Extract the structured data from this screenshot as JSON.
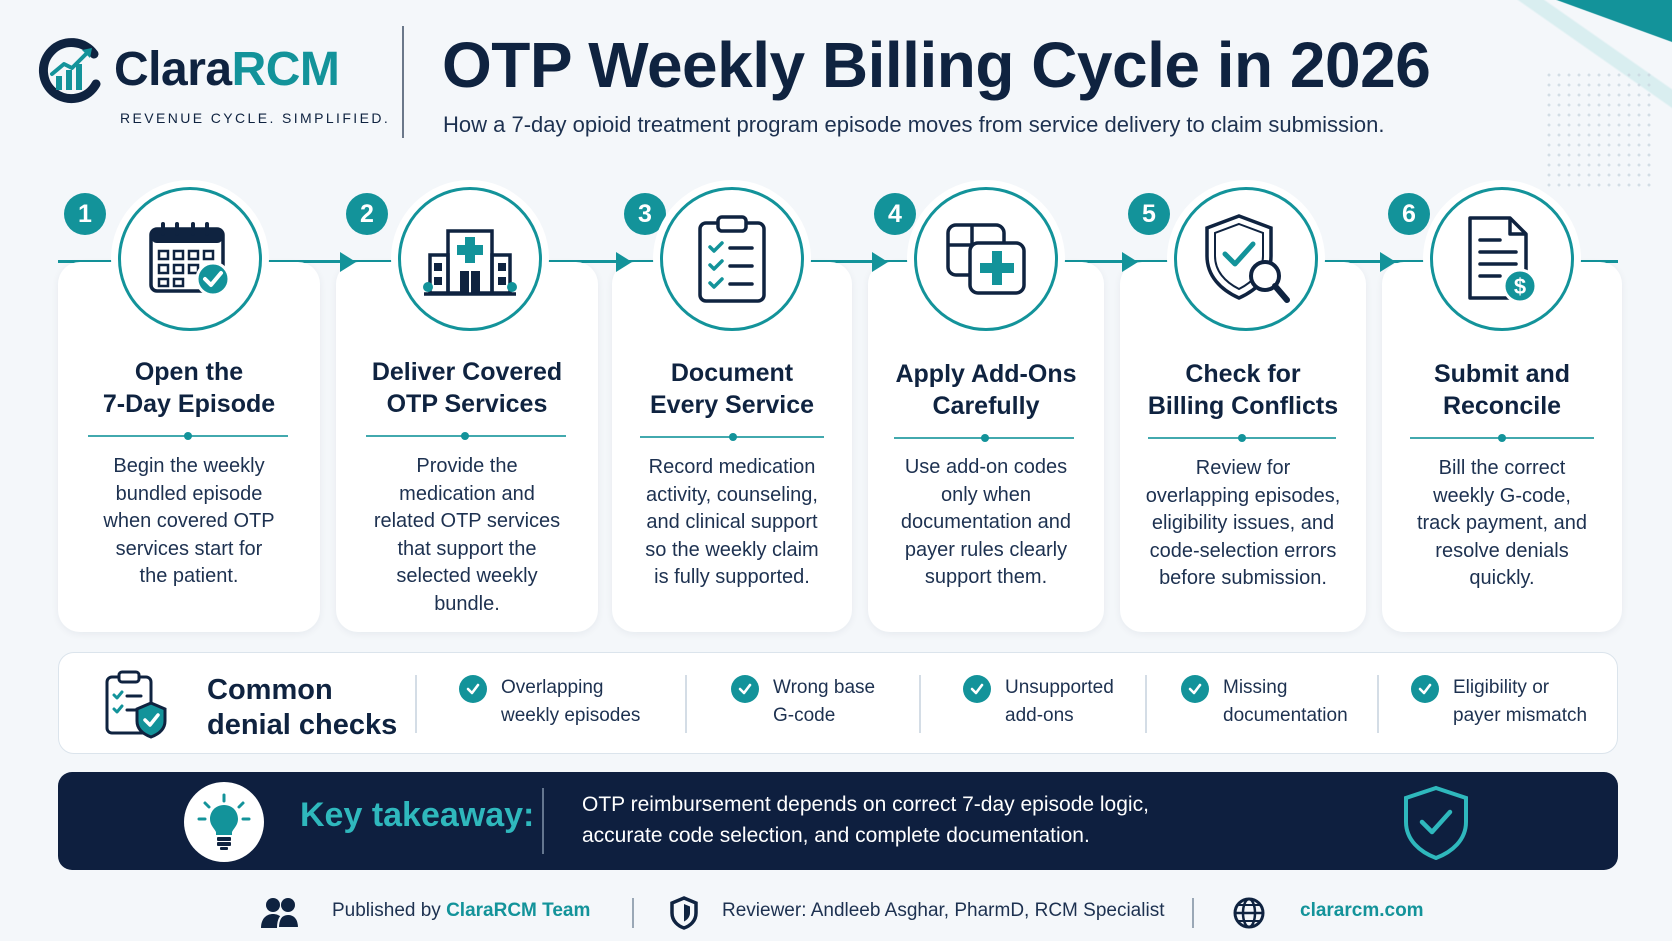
{
  "brand": {
    "name_part1": "Clara",
    "name_part2": "RCM",
    "tagline": "REVENUE CYCLE. SIMPLIFIED."
  },
  "header": {
    "title": "OTP Weekly Billing Cycle in 2026",
    "subtitle": "How a 7-day opioid treatment program episode moves from service delivery to claim submission."
  },
  "steps": [
    {
      "number": "1",
      "icon": "calendar-check-icon",
      "title_line1": "Open the",
      "title_line2": "7-Day Episode",
      "desc": [
        "Begin the weekly",
        "bundled episode",
        "when covered OTP",
        "services start for",
        "the patient."
      ]
    },
    {
      "number": "2",
      "icon": "hospital-icon",
      "title_line1": "Deliver Covered",
      "title_line2": "OTP Services",
      "desc": [
        "Provide the",
        "medication and",
        "related OTP services",
        "that support the",
        "selected weekly",
        "bundle."
      ]
    },
    {
      "number": "3",
      "icon": "clipboard-checklist-icon",
      "title_line1": "Document",
      "title_line2": "Every Service",
      "desc": [
        "Record medication",
        "activity, counseling,",
        "and clinical support",
        "so the weekly claim",
        "is fully supported."
      ]
    },
    {
      "number": "4",
      "icon": "add-on-plus-icon",
      "title_line1": "Apply Add-Ons",
      "title_line2": "Carefully",
      "desc": [
        "Use add-on codes",
        "only when",
        "documentation and",
        "payer rules clearly",
        "support them."
      ]
    },
    {
      "number": "5",
      "icon": "shield-search-icon",
      "title_line1": "Check for",
      "title_line2": "Billing Conflicts",
      "desc": [
        "Review for",
        "overlapping episodes,",
        "eligibility issues, and",
        "code-selection errors",
        "before submission."
      ]
    },
    {
      "number": "6",
      "icon": "invoice-dollar-icon",
      "title_line1": "Submit and",
      "title_line2": "Reconcile",
      "desc": [
        "Bill the correct",
        "weekly G-code,",
        "track payment, and",
        "resolve denials",
        "quickly."
      ]
    }
  ],
  "denial_checks": {
    "title_line1": "Common",
    "title_line2": "denial checks",
    "items": [
      {
        "line1": "Overlapping",
        "line2": "weekly episodes"
      },
      {
        "line1": "Wrong base",
        "line2": "G-code"
      },
      {
        "line1": "Unsupported",
        "line2": "add-ons"
      },
      {
        "line1": "Missing",
        "line2": "documentation"
      },
      {
        "line1": "Eligibility or",
        "line2": "payer mismatch"
      }
    ]
  },
  "takeaway": {
    "label": "Key takeaway:",
    "line1": "OTP reimbursement depends on correct 7-day episode logic,",
    "line2": "accurate code selection, and complete documentation."
  },
  "footer": {
    "published_prefix": "Published by",
    "published_by": "ClaraRCM Team",
    "reviewer": "Reviewer: Andleeb Asghar, PharmD, RCM Specialist",
    "website": "clararcm.com"
  },
  "colors": {
    "navy": "#0f2340",
    "teal": "#13939a",
    "takeaway_bg": "#0e1f3f",
    "takeaway_accent": "#2fb8bd"
  }
}
